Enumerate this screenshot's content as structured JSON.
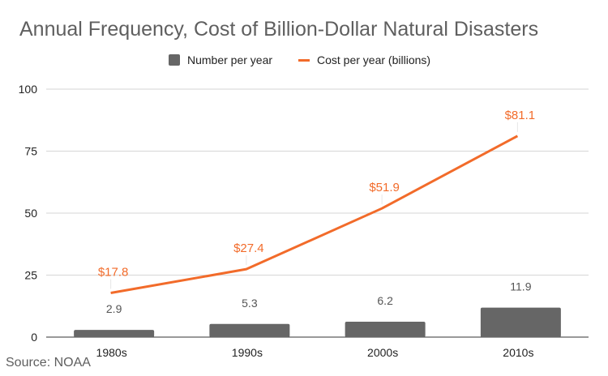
{
  "title": "Annual Frequency, Cost of Billion-Dollar Natural Disasters",
  "source": "Source: NOAA",
  "colors": {
    "bar": "#666666",
    "line": "#f26b2a",
    "grid": "#d6d6d6",
    "bar_label": "#555555"
  },
  "chart_data": {
    "type": "bar",
    "categories": [
      "1980s",
      "1990s",
      "2000s",
      "2010s"
    ],
    "ylim": [
      0,
      100
    ],
    "yticks": [
      "0",
      "25",
      "50",
      "75",
      "100"
    ],
    "grid": true,
    "legend_position": "top",
    "series": [
      {
        "name": "Number per year",
        "type": "bar",
        "values": [
          2.9,
          5.3,
          6.2,
          11.9
        ],
        "labels": [
          "2.9",
          "5.3",
          "6.2",
          "11.9"
        ]
      },
      {
        "name": "Cost per year (billions)",
        "type": "line",
        "values": [
          17.8,
          27.4,
          51.9,
          81.1
        ],
        "labels": [
          "$17.8",
          "$27.4",
          "$51.9",
          "$81.1"
        ]
      }
    ]
  }
}
